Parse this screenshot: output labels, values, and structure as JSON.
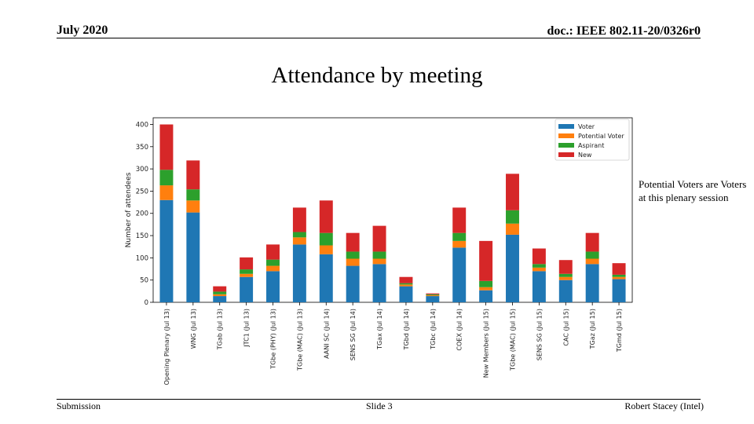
{
  "header": {
    "date": "July 2020",
    "doc_id": "doc.: IEEE 802.11-20/0326r0"
  },
  "slide": {
    "title": "Attendance by meeting",
    "note": "Potential Voters are Voters at this plenary session"
  },
  "footer": {
    "left": "Submission",
    "center": "Slide 3",
    "right": "Robert Stacey (Intel)"
  },
  "chart_data": {
    "type": "bar",
    "stacked": true,
    "title": "",
    "xlabel": "",
    "ylabel": "Number of attendees",
    "ylim": [
      0,
      415
    ],
    "yticks": [
      0,
      50,
      100,
      150,
      200,
      250,
      300,
      350,
      400
    ],
    "legend_position": "top-right",
    "grid": false,
    "categories": [
      "Opening Plenary (Jul 13)",
      "WNG (Jul 13)",
      "TGab (Jul 13)",
      "JTC1 (Jul 13)",
      "TGbe (PHY) (Jul 13)",
      "TGbe (MAC) (Jul 13)",
      "AANI SC (Jul 14)",
      "SENS SG (Jul 14)",
      "TGax (Jul 14)",
      "TGbd (Jul 14)",
      "TGbc (Jul 14)",
      "COEX (Jul 14)",
      "New Members (Jul 15)",
      "TGbe (MAC) (Jul 15)",
      "SENS SG (Jul 15)",
      "CAC (Jul 15)",
      "TGaz (Jul 15)",
      "TGmd (Jul 15)"
    ],
    "series": [
      {
        "name": "Voter",
        "color": "#1f77b4",
        "values": [
          230,
          202,
          14,
          57,
          70,
          130,
          108,
          82,
          86,
          36,
          14,
          123,
          27,
          152,
          70,
          50,
          86,
          52
        ]
      },
      {
        "name": "Potential Voter",
        "color": "#ff7f0e",
        "values": [
          33,
          27,
          4,
          7,
          12,
          16,
          20,
          16,
          12,
          4,
          2,
          15,
          7,
          25,
          8,
          7,
          12,
          5
        ]
      },
      {
        "name": "Aspirant",
        "color": "#2ca02c",
        "values": [
          35,
          25,
          6,
          10,
          14,
          12,
          28,
          16,
          16,
          3,
          2,
          18,
          14,
          30,
          8,
          7,
          16,
          5
        ]
      },
      {
        "name": "New",
        "color": "#d62728",
        "values": [
          102,
          65,
          12,
          27,
          34,
          55,
          73,
          42,
          58,
          14,
          2,
          57,
          90,
          82,
          35,
          31,
          42,
          26
        ]
      }
    ]
  }
}
